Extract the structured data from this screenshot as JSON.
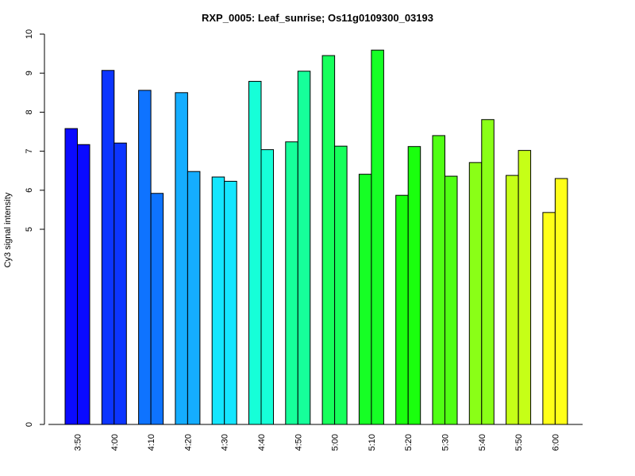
{
  "chart_data": {
    "type": "bar",
    "title": "RXP_0005: Leaf_sunrise; Os11g0109300_03193",
    "xlabel": "",
    "ylabel": "Cy3 signal intensity",
    "y_ticks": [
      "0",
      "5",
      "6",
      "7",
      "8",
      "9",
      "10"
    ],
    "categories": [
      "3:50",
      "4:00",
      "4:10",
      "4:20",
      "4:30",
      "4:40",
      "4:50",
      "5:00",
      "5:10",
      "5:20",
      "5:30",
      "5:40",
      "5:50",
      "6:00"
    ],
    "values": [
      [
        7.58,
        7.17
      ],
      [
        9.07,
        7.21
      ],
      [
        8.56,
        5.92
      ],
      [
        8.5,
        6.48
      ],
      [
        6.34,
        6.23
      ],
      [
        8.79,
        7.04
      ],
      [
        7.24,
        9.05
      ],
      [
        9.45,
        7.13
      ],
      [
        6.41,
        9.59
      ],
      [
        5.87,
        7.12
      ],
      [
        7.4,
        6.36
      ],
      [
        6.71,
        7.81
      ],
      [
        6.38,
        7.02
      ],
      [
        5.43,
        6.3
      ]
    ],
    "bar_colors": [
      [
        "#0a0aff",
        "#0a0aff"
      ],
      [
        "#0c35ff",
        "#0c35ff"
      ],
      [
        "#0e73ff",
        "#0e73ff"
      ],
      [
        "#15adff",
        "#15adff"
      ],
      [
        "#15e6ff",
        "#15e6ff"
      ],
      [
        "#16ffd8",
        "#16ffd8"
      ],
      [
        "#16ff9a",
        "#16ff9a"
      ],
      [
        "#16ff5b",
        "#16ff5b"
      ],
      [
        "#16ff25",
        "#16ff25"
      ],
      [
        "#1aff0e",
        "#1aff0e"
      ],
      [
        "#50ff14",
        "#50ff14"
      ],
      [
        "#8aff17",
        "#8aff17"
      ],
      [
        "#c6ff17",
        "#c6ff17"
      ],
      [
        "#ffff18",
        "#ffff18"
      ]
    ],
    "grid": false,
    "legend": "none"
  }
}
